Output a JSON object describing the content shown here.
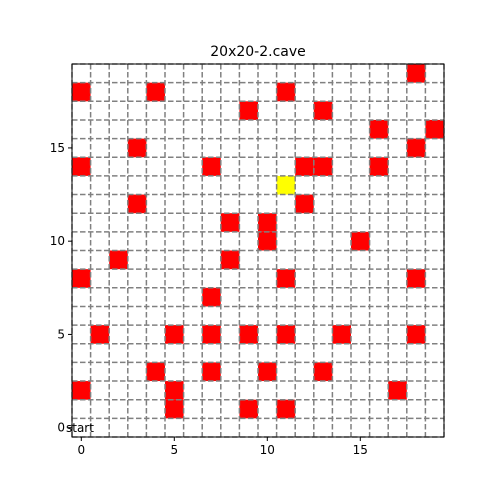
{
  "title": "20x20-2.cave",
  "grid": {
    "size": 20,
    "xlim": [
      -0.5,
      19.5
    ],
    "ylim": [
      -0.5,
      19.5
    ],
    "gridline_color": "#808080",
    "gridline_style": "dashed"
  },
  "x_ticks": [
    0,
    5,
    10,
    15
  ],
  "y_ticks": [
    0,
    5,
    10,
    15
  ],
  "start": {
    "label": "start",
    "x": 0,
    "y": 0
  },
  "colors": {
    "wall": "#ff0000",
    "goal": "#ffff00",
    "axes": "#000000"
  },
  "walls": [
    [
      18,
      19
    ],
    [
      0,
      18
    ],
    [
      4,
      18
    ],
    [
      11,
      18
    ],
    [
      9,
      17
    ],
    [
      13,
      17
    ],
    [
      16,
      16
    ],
    [
      19,
      16
    ],
    [
      3,
      15
    ],
    [
      18,
      15
    ],
    [
      0,
      14
    ],
    [
      7,
      14
    ],
    [
      12,
      14
    ],
    [
      13,
      14
    ],
    [
      16,
      14
    ],
    [
      3,
      12
    ],
    [
      12,
      12
    ],
    [
      8,
      11
    ],
    [
      10,
      11
    ],
    [
      10,
      10
    ],
    [
      15,
      10
    ],
    [
      2,
      9
    ],
    [
      8,
      9
    ],
    [
      0,
      8
    ],
    [
      11,
      8
    ],
    [
      18,
      8
    ],
    [
      7,
      7
    ],
    [
      1,
      5
    ],
    [
      5,
      5
    ],
    [
      7,
      5
    ],
    [
      9,
      5
    ],
    [
      11,
      5
    ],
    [
      14,
      5
    ],
    [
      18,
      5
    ],
    [
      4,
      3
    ],
    [
      7,
      3
    ],
    [
      10,
      3
    ],
    [
      13,
      3
    ],
    [
      0,
      2
    ],
    [
      5,
      2
    ],
    [
      17,
      2
    ],
    [
      5,
      1
    ],
    [
      9,
      1
    ],
    [
      11,
      1
    ]
  ],
  "goal": [
    11,
    13
  ]
}
